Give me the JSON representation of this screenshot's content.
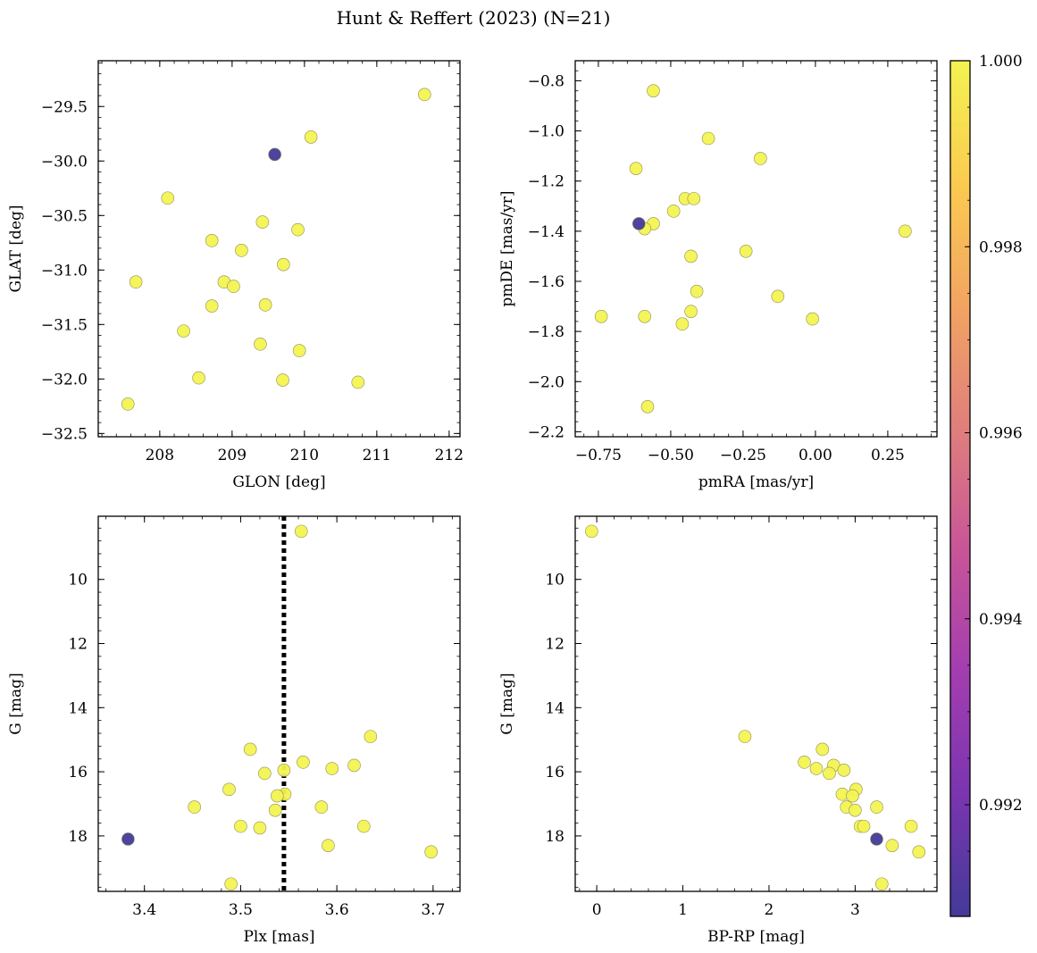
{
  "figure_title": "Hunt & Reffert (2023) (N=21)",
  "colorbar": {
    "ticks": [
      "0.992",
      "0.994",
      "0.996",
      "0.998",
      "1.000"
    ],
    "range": [
      0.9908,
      1.0
    ],
    "colors": [
      "#433a98",
      "#7a35b0",
      "#a33db0",
      "#c85598",
      "#e07f7c",
      "#f2a462",
      "#fbcb50",
      "#f3f352"
    ]
  },
  "chart_data": [
    {
      "id": "sky",
      "type": "scatter",
      "xlabel": "GLON [deg]",
      "ylabel": "GLAT [deg]",
      "xlim": [
        207.15,
        212.15
      ],
      "ylim": [
        -32.53,
        -29.08
      ],
      "xticks": [
        208,
        209,
        210,
        211,
        212
      ],
      "xtick_labels": [
        "208",
        "209",
        "210",
        "211",
        "212"
      ],
      "yticks": [
        -32.5,
        -32.0,
        -31.5,
        -31.0,
        -30.5,
        -30.0,
        -29.5
      ],
      "ytick_labels": [
        "−32.5",
        "−32.0",
        "−31.5",
        "−31.0",
        "−30.5",
        "−30.0",
        "−29.5"
      ],
      "points": [
        {
          "x": 211.66,
          "y": -29.39,
          "c": 1.0
        },
        {
          "x": 210.09,
          "y": -29.78,
          "c": 1.0
        },
        {
          "x": 208.11,
          "y": -30.34,
          "c": 1.0
        },
        {
          "x": 209.42,
          "y": -30.56,
          "c": 1.0
        },
        {
          "x": 209.91,
          "y": -30.63,
          "c": 1.0
        },
        {
          "x": 208.72,
          "y": -30.73,
          "c": 1.0
        },
        {
          "x": 209.13,
          "y": -30.82,
          "c": 1.0
        },
        {
          "x": 209.71,
          "y": -30.95,
          "c": 1.0
        },
        {
          "x": 207.67,
          "y": -31.11,
          "c": 1.0
        },
        {
          "x": 208.89,
          "y": -31.11,
          "c": 1.0
        },
        {
          "x": 209.02,
          "y": -31.15,
          "c": 1.0
        },
        {
          "x": 208.72,
          "y": -31.33,
          "c": 1.0
        },
        {
          "x": 209.46,
          "y": -31.32,
          "c": 1.0
        },
        {
          "x": 208.33,
          "y": -31.56,
          "c": 1.0
        },
        {
          "x": 209.39,
          "y": -31.68,
          "c": 1.0
        },
        {
          "x": 209.93,
          "y": -31.74,
          "c": 1.0
        },
        {
          "x": 208.54,
          "y": -31.99,
          "c": 1.0
        },
        {
          "x": 209.7,
          "y": -32.01,
          "c": 1.0
        },
        {
          "x": 210.74,
          "y": -32.03,
          "c": 1.0
        },
        {
          "x": 207.56,
          "y": -32.23,
          "c": 1.0
        },
        {
          "x": 209.59,
          "y": -29.94,
          "c": 0.9908
        }
      ]
    },
    {
      "id": "pm",
      "type": "scatter",
      "xlabel": "pmRA [mas/yr]",
      "ylabel": "pmDE [mas/yr]",
      "xlim": [
        -0.83,
        0.42
      ],
      "ylim": [
        -2.22,
        -0.72
      ],
      "xticks": [
        -0.75,
        -0.5,
        -0.25,
        0.0,
        0.25
      ],
      "xtick_labels": [
        "−0.75",
        "−0.50",
        "−0.25",
        "0.00",
        "0.25"
      ],
      "yticks": [
        -2.2,
        -2.0,
        -1.8,
        -1.6,
        -1.4,
        -1.2,
        -1.0,
        -0.8
      ],
      "ytick_labels": [
        "−2.2",
        "−2.0",
        "−1.8",
        "−1.6",
        "−1.4",
        "−1.2",
        "−1.0",
        "−0.8"
      ],
      "points": [
        {
          "x": -0.56,
          "y": -0.84,
          "c": 1.0
        },
        {
          "x": -0.37,
          "y": -1.03,
          "c": 1.0
        },
        {
          "x": -0.19,
          "y": -1.11,
          "c": 1.0
        },
        {
          "x": -0.62,
          "y": -1.15,
          "c": 1.0
        },
        {
          "x": -0.45,
          "y": -1.27,
          "c": 1.0
        },
        {
          "x": -0.42,
          "y": -1.27,
          "c": 1.0
        },
        {
          "x": -0.49,
          "y": -1.32,
          "c": 1.0
        },
        {
          "x": -0.56,
          "y": -1.37,
          "c": 1.0
        },
        {
          "x": -0.59,
          "y": -1.39,
          "c": 1.0
        },
        {
          "x": 0.31,
          "y": -1.4,
          "c": 1.0
        },
        {
          "x": -0.24,
          "y": -1.48,
          "c": 1.0
        },
        {
          "x": -0.43,
          "y": -1.5,
          "c": 1.0
        },
        {
          "x": -0.41,
          "y": -1.64,
          "c": 1.0
        },
        {
          "x": -0.13,
          "y": -1.66,
          "c": 1.0
        },
        {
          "x": -0.43,
          "y": -1.72,
          "c": 1.0
        },
        {
          "x": -0.74,
          "y": -1.74,
          "c": 1.0
        },
        {
          "x": -0.59,
          "y": -1.74,
          "c": 1.0
        },
        {
          "x": -0.01,
          "y": -1.75,
          "c": 1.0
        },
        {
          "x": -0.46,
          "y": -1.77,
          "c": 1.0
        },
        {
          "x": -0.58,
          "y": -2.1,
          "c": 1.0
        },
        {
          "x": -0.61,
          "y": -1.37,
          "c": 0.9908
        }
      ]
    },
    {
      "id": "plx",
      "type": "scatter",
      "xlabel": "Plx [mas]",
      "ylabel": "G [mag]",
      "xlim": [
        3.352,
        3.728
      ],
      "ylim": [
        19.73,
        8.03
      ],
      "xticks": [
        3.4,
        3.5,
        3.6,
        3.7
      ],
      "xtick_labels": [
        "3.4",
        "3.5",
        "3.6",
        "3.7"
      ],
      "yticks": [
        10,
        12,
        14,
        16,
        18
      ],
      "ytick_labels": [
        "10",
        "12",
        "14",
        "16",
        "18"
      ],
      "vline": 3.545,
      "points": [
        {
          "x": 3.563,
          "y": 8.5,
          "c": 1.0
        },
        {
          "x": 3.635,
          "y": 14.9,
          "c": 1.0
        },
        {
          "x": 3.51,
          "y": 15.3,
          "c": 1.0
        },
        {
          "x": 3.565,
          "y": 15.7,
          "c": 1.0
        },
        {
          "x": 3.618,
          "y": 15.8,
          "c": 1.0
        },
        {
          "x": 3.595,
          "y": 15.9,
          "c": 1.0
        },
        {
          "x": 3.545,
          "y": 15.95,
          "c": 1.0
        },
        {
          "x": 3.525,
          "y": 16.05,
          "c": 1.0
        },
        {
          "x": 3.488,
          "y": 16.55,
          "c": 1.0
        },
        {
          "x": 3.546,
          "y": 16.7,
          "c": 1.0
        },
        {
          "x": 3.538,
          "y": 16.75,
          "c": 1.0
        },
        {
          "x": 3.452,
          "y": 17.1,
          "c": 1.0
        },
        {
          "x": 3.584,
          "y": 17.1,
          "c": 1.0
        },
        {
          "x": 3.536,
          "y": 17.2,
          "c": 1.0
        },
        {
          "x": 3.5,
          "y": 17.7,
          "c": 1.0
        },
        {
          "x": 3.52,
          "y": 17.75,
          "c": 1.0
        },
        {
          "x": 3.628,
          "y": 17.7,
          "c": 1.0
        },
        {
          "x": 3.591,
          "y": 18.3,
          "c": 1.0
        },
        {
          "x": 3.698,
          "y": 18.5,
          "c": 1.0
        },
        {
          "x": 3.49,
          "y": 19.5,
          "c": 1.0
        },
        {
          "x": 3.383,
          "y": 18.1,
          "c": 0.9908
        }
      ]
    },
    {
      "id": "cmd",
      "type": "scatter",
      "xlabel": "BP-RP [mag]",
      "ylabel": "G [mag]",
      "xlim": [
        -0.25,
        3.95
      ],
      "ylim": [
        19.73,
        8.03
      ],
      "xticks": [
        0,
        1,
        2,
        3
      ],
      "xtick_labels": [
        "0",
        "1",
        "2",
        "3"
      ],
      "yticks": [
        10,
        12,
        14,
        16,
        18
      ],
      "ytick_labels": [
        "10",
        "12",
        "14",
        "16",
        "18"
      ],
      "points": [
        {
          "x": -0.06,
          "y": 8.5,
          "c": 1.0
        },
        {
          "x": 1.72,
          "y": 14.9,
          "c": 1.0
        },
        {
          "x": 2.62,
          "y": 15.3,
          "c": 1.0
        },
        {
          "x": 2.41,
          "y": 15.7,
          "c": 1.0
        },
        {
          "x": 2.75,
          "y": 15.8,
          "c": 1.0
        },
        {
          "x": 2.55,
          "y": 15.9,
          "c": 1.0
        },
        {
          "x": 2.87,
          "y": 15.95,
          "c": 1.0
        },
        {
          "x": 2.7,
          "y": 16.05,
          "c": 1.0
        },
        {
          "x": 3.01,
          "y": 16.55,
          "c": 1.0
        },
        {
          "x": 2.85,
          "y": 16.7,
          "c": 1.0
        },
        {
          "x": 2.97,
          "y": 16.75,
          "c": 1.0
        },
        {
          "x": 2.9,
          "y": 17.1,
          "c": 1.0
        },
        {
          "x": 3.25,
          "y": 17.1,
          "c": 1.0
        },
        {
          "x": 3.0,
          "y": 17.2,
          "c": 1.0
        },
        {
          "x": 3.06,
          "y": 17.7,
          "c": 1.0
        },
        {
          "x": 3.1,
          "y": 17.7,
          "c": 1.0
        },
        {
          "x": 3.65,
          "y": 17.7,
          "c": 1.0
        },
        {
          "x": 3.43,
          "y": 18.3,
          "c": 1.0
        },
        {
          "x": 3.74,
          "y": 18.5,
          "c": 1.0
        },
        {
          "x": 3.31,
          "y": 19.5,
          "c": 1.0
        },
        {
          "x": 3.25,
          "y": 18.1,
          "c": 0.9908
        }
      ]
    }
  ]
}
